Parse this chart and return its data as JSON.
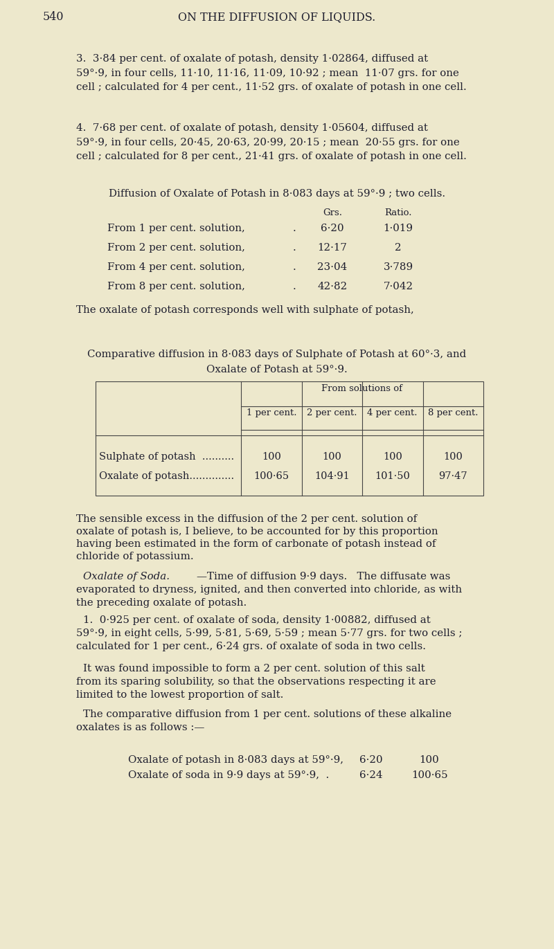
{
  "bg_color": "#ede8cc",
  "text_color": "#1e1e2e",
  "page_number": "540",
  "page_header": "ON THE DIFFUSION OF LIQUIDS.",
  "fs_body": 10.8,
  "fs_header": 11.5,
  "fs_small": 9.5,
  "para3": "3.  3·84 per cent. of oxalate of potash, density 1·02864, diffused at\n59°·9, in four cells, 11·10, 11·16, 11·09, 10·92 ; mean  11·07 grs. for one\ncell ; calculated for 4 per cent., 11·52 grs. of oxalate of potash in one cell.",
  "para4": "4.  7·68 per cent. of oxalate of potash, density 1·05604, diffused at\n59°·9, in four cells, 20·45, 20·63, 20·99, 20·15 ; mean  20·55 grs. for one\ncell ; calculated for 8 per cent., 21·41 grs. of oxalate of potash in one cell.",
  "diffusion_heading": "Diffusion of Oxalate of Potash in 8·083 days at 59°·9 ; two cells.",
  "grs_header": "Grs.",
  "ratio_header": "Ratio.",
  "diff_rows": [
    [
      "From 1 per cent. solution,",
      "6·20",
      "1·019"
    ],
    [
      "From 2 per cent. solution,",
      "12·17",
      "2"
    ],
    [
      "From 4 per cent. solution,",
      "23·04",
      "3·789"
    ],
    [
      "From 8 per cent. solution,",
      "42·82",
      "7·042"
    ]
  ],
  "para_corresponds": "The oxalate of potash corresponds well with sulphate of potash,",
  "comp_line1": "Comparative diffusion in 8·083 days of Sulphate of Potash at 60°·3, and",
  "comp_line2": "Oxalate of Potash at 59°·9.",
  "tbl_merged_header": "From solutions of",
  "tbl_col_headers": [
    "1 per cent.",
    "2 per cent.",
    "4 per cent.",
    "8 per cent."
  ],
  "tbl_row1_label": "Sulphate of potash  ..........",
  "tbl_row2_label": "Oxalate of potash..............",
  "tbl_row1_data": [
    "100",
    "100",
    "100",
    "100"
  ],
  "tbl_row2_data": [
    "100·65",
    "104·91",
    "101·50",
    "97·47"
  ],
  "para_sensible_l1": "The sensible excess in the diffusion of the 2 per cent. solution of",
  "para_sensible_l2": "oxalate of potash is, I believe, to be accounted for by this proportion",
  "para_sensible_l3": "having been estimated in the form of carbonate of potash instead of",
  "para_sensible_l4": "chloride of potassium.",
  "oxalate_soda_italic": "Oxalate of Soda.",
  "oxalate_soda_rest": "—Time of diffusion 9·9 days.   The diffusate was",
  "oxalate_soda_l2": "evaporated to dryness, ignited, and then converted into chloride, as with",
  "oxalate_soda_l3": "the preceding oxalate of potash.",
  "para1_soda_l1": "1.  0·925 per cent. of oxalate of soda, density 1·00882, diffused at",
  "para1_soda_l2": "59°·9, in eight cells, 5·99, 5·81, 5·69, 5·59 ; mean 5·77 grs. for two cells ;",
  "para1_soda_l3": "calculated for 1 per cent., 6·24 grs. of oxalate of soda in two cells.",
  "impossible_l1": "It was found impossible to form a 2 per cent. solution of this salt",
  "impossible_l2": "from its sparing solubility, so that the observations respecting it are",
  "impossible_l3": "limited to the lowest proportion of salt.",
  "comp_diff_l1": "The comparative diffusion from 1 per cent. solutions of these alkaline",
  "comp_diff_l2": "oxalates is as follows :—",
  "final_row1_label": "Oxalate of potash in 8·083 days at 59°·9,",
  "final_row1_v1": "6·20",
  "final_row1_v2": "100",
  "final_row2_label": "Oxalate of soda in 9·9 days at 59°·9,  .",
  "final_row2_v1": "6·24",
  "final_row2_v2": "100·65"
}
